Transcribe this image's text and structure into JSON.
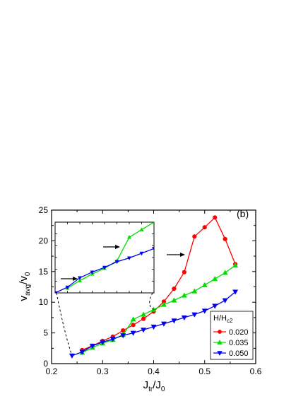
{
  "chart_data": {
    "type": "line",
    "panel_label": "(b)",
    "xlabel": {
      "main": "J",
      "sub": "tr",
      "sep": "/J",
      "sub2": "0"
    },
    "ylabel": {
      "main": "v",
      "sub": "avg",
      "sep": "/v",
      "sub2": "0"
    },
    "xlim": [
      0.2,
      0.6
    ],
    "ylim": [
      0,
      25
    ],
    "xticks": [
      0.2,
      0.3,
      0.4,
      0.5,
      0.6
    ],
    "yticks": [
      0,
      5,
      10,
      15,
      20,
      25
    ],
    "legend": {
      "title_main": "H/H",
      "title_sub": "c2",
      "placement": "lower-right"
    },
    "series": [
      {
        "name": "0.020",
        "color": "#ff0000",
        "marker": "circle",
        "x": [
          0.26,
          0.28,
          0.3,
          0.32,
          0.34,
          0.36,
          0.38,
          0.4,
          0.42,
          0.44,
          0.46,
          0.48,
          0.5,
          0.52,
          0.54,
          0.56
        ],
        "y": [
          2.2,
          2.9,
          3.7,
          4.4,
          5.4,
          6.3,
          7.3,
          8.5,
          10.1,
          12.2,
          14.9,
          20.7,
          22.2,
          23.8,
          20.3,
          16.2
        ]
      },
      {
        "name": "0.035",
        "color": "#00dd00",
        "marker": "triangle-up",
        "x": [
          0.26,
          0.28,
          0.3,
          0.32,
          0.34,
          0.36,
          0.38,
          0.4,
          0.42,
          0.44,
          0.46,
          0.48,
          0.5,
          0.52,
          0.54,
          0.56
        ],
        "y": [
          1.8,
          2.6,
          3.3,
          3.9,
          4.7,
          7.2,
          8.0,
          8.8,
          9.6,
          10.3,
          11.1,
          11.8,
          12.8,
          13.8,
          14.8,
          16.0
        ]
      },
      {
        "name": "0.050",
        "color": "#0000ee",
        "marker": "triangle-down",
        "x": [
          0.24,
          0.26,
          0.28,
          0.3,
          0.32,
          0.34,
          0.36,
          0.38,
          0.4,
          0.42,
          0.44,
          0.46,
          0.48,
          0.5,
          0.52,
          0.54,
          0.56
        ],
        "y": [
          1.3,
          1.9,
          2.9,
          3.5,
          4.0,
          4.6,
          5.0,
          5.5,
          6.0,
          6.5,
          7.0,
          7.5,
          8.0,
          8.6,
          9.4,
          10.3,
          11.7
        ]
      }
    ],
    "inset": {
      "type": "line",
      "zoom_of": "main-axes",
      "x_range": [
        0.24,
        0.4
      ],
      "y_range": [
        1.3,
        8.8
      ],
      "series": [
        {
          "name": "0.035",
          "color": "#00dd00",
          "marker": "triangle-up"
        },
        {
          "name": "0.050",
          "color": "#0000ee",
          "marker": "triangle-down"
        }
      ]
    },
    "annotations": [
      {
        "type": "arrow",
        "where": "inset-lower-left",
        "direction": "right"
      },
      {
        "type": "arrow",
        "where": "inset-middle",
        "direction": "right"
      },
      {
        "type": "arrow",
        "where": "main-center",
        "direction": "right"
      }
    ]
  }
}
